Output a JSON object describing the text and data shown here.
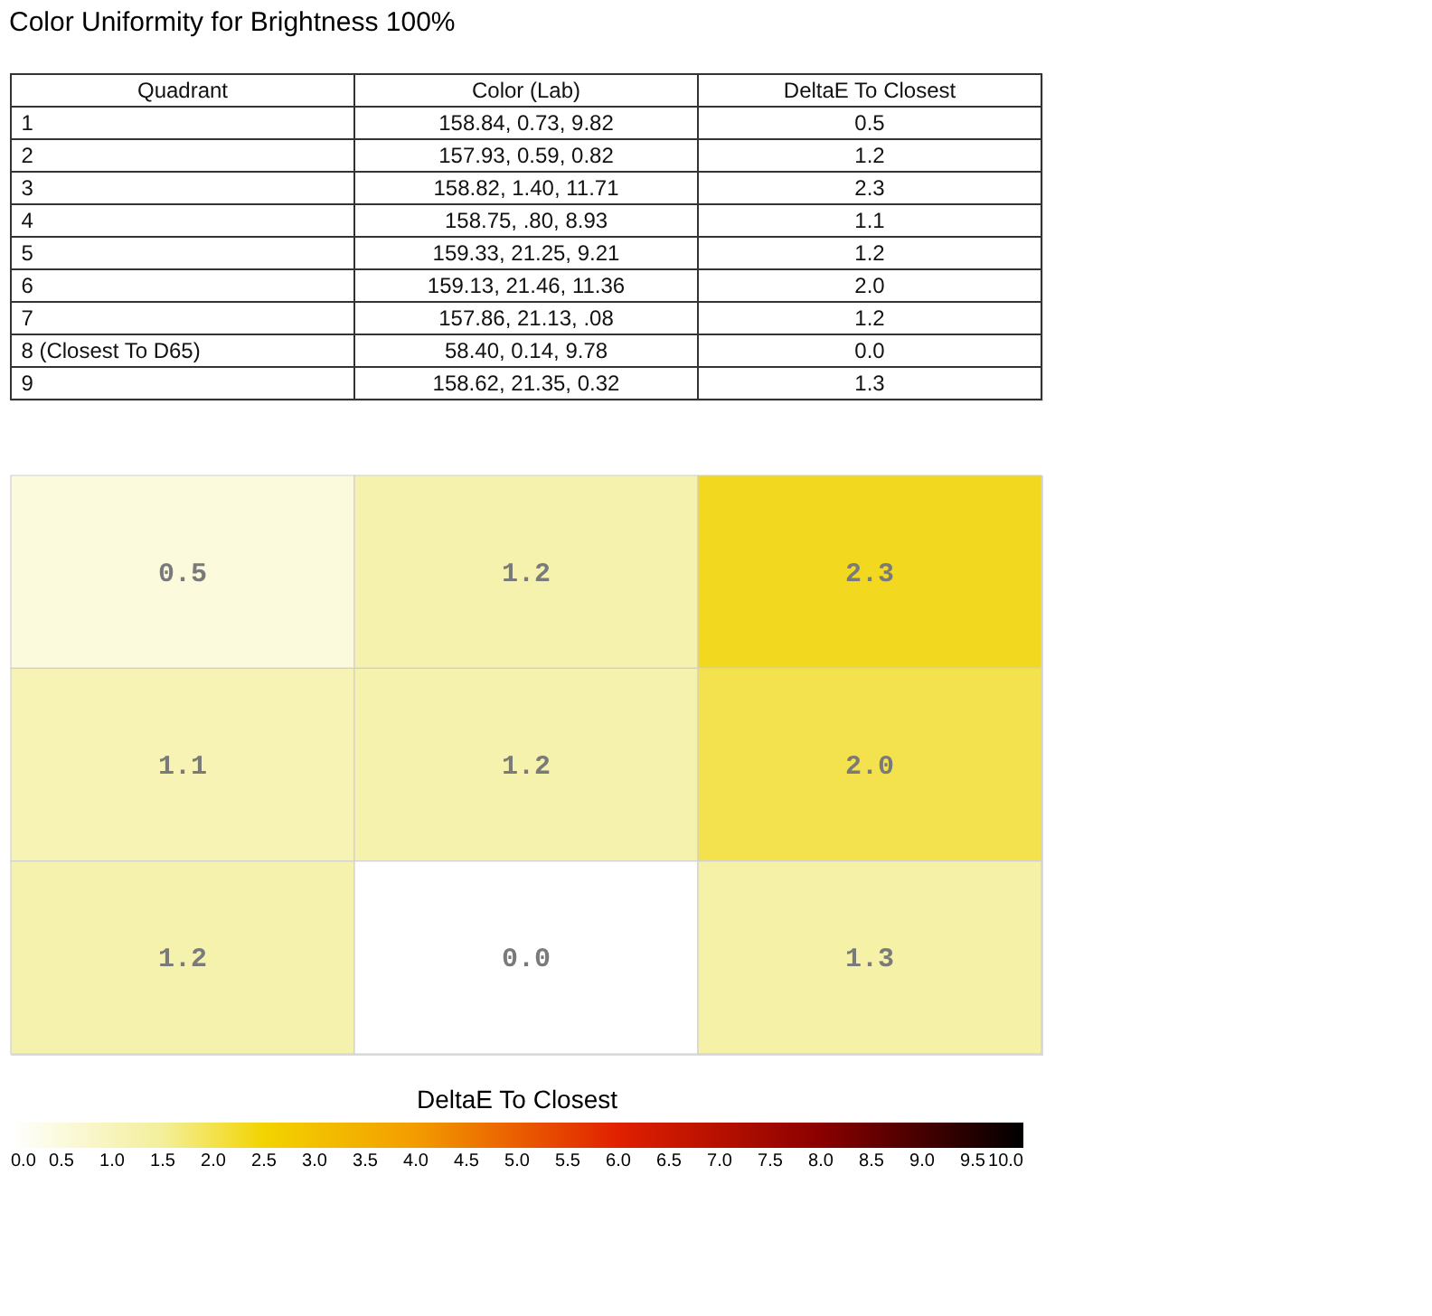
{
  "chart_data": [
    {
      "type": "other",
      "title": "Color Uniformity for Brightness 100%",
      "categories": [
        "Quadrant",
        "Color (Lab)",
        "DeltaE To Closest"
      ],
      "annotations": [
        "1",
        "158.84, 0.73, 9.82",
        "0.5",
        "2",
        "157.93, 0.59, 0.82",
        "1.2",
        "3",
        "158.82, 1.40, 11.71",
        "2.3",
        "4",
        "158.75, .80, 8.93",
        "1.1",
        "5",
        "159.33, 21.25, 9.21",
        "1.2",
        "6",
        "159.13, 21.46, 11.36",
        "2.0",
        "7",
        "157.86, 21.13, .08",
        "1.2",
        "8 (Closest To D65)",
        "58.40, 0.14, 9.78",
        "0.0",
        "9",
        "158.62, 21.35, 0.32",
        "1.3"
      ]
    },
    {
      "type": "heatmap",
      "categories": [
        null,
        null,
        null
      ],
      "y_categories": [
        null,
        null,
        null
      ],
      "cells": [
        [
          0.5,
          1.2,
          2.3
        ],
        [
          1.1,
          1.2,
          2.0
        ],
        [
          1.2,
          0.0,
          1.3
        ]
      ],
      "cell_labels": [
        [
          "0.5",
          "1.2",
          "2.3"
        ],
        [
          "1.1",
          "1.2",
          "2.0"
        ],
        [
          "1.2",
          "0.0",
          "1.3"
        ]
      ],
      "tick_labels": false,
      "clabel": "DeltaE To Closest",
      "clim": [
        0,
        10
      ],
      "cticks": [
        {
          "value": 0,
          "label": "0.0"
        },
        {
          "value": 0.5,
          "label": "0.5"
        },
        {
          "value": 1,
          "label": "1.0"
        },
        {
          "value": 1.5,
          "label": "1.5"
        },
        {
          "value": 2,
          "label": "2.0"
        },
        {
          "value": 2.5,
          "label": "2.5"
        },
        {
          "value": 3,
          "label": "3.0"
        },
        {
          "value": 3.5,
          "label": "3.5"
        },
        {
          "value": 4,
          "label": "4.0"
        },
        {
          "value": 4.5,
          "label": "4.5"
        },
        {
          "value": 5,
          "label": "5.0"
        },
        {
          "value": 5.5,
          "label": "5.5"
        },
        {
          "value": 6,
          "label": "6.0"
        },
        {
          "value": 6.5,
          "label": "6.5"
        },
        {
          "value": 7,
          "label": "7.0"
        },
        {
          "value": 7.5,
          "label": "7.5"
        },
        {
          "value": 8,
          "label": "8.0"
        },
        {
          "value": 8.5,
          "label": "8.5"
        },
        {
          "value": 9,
          "label": "9.0"
        },
        {
          "value": 9.5,
          "label": "9.5"
        },
        {
          "value": 10,
          "label": "10.0"
        }
      ]
    }
  ]
}
